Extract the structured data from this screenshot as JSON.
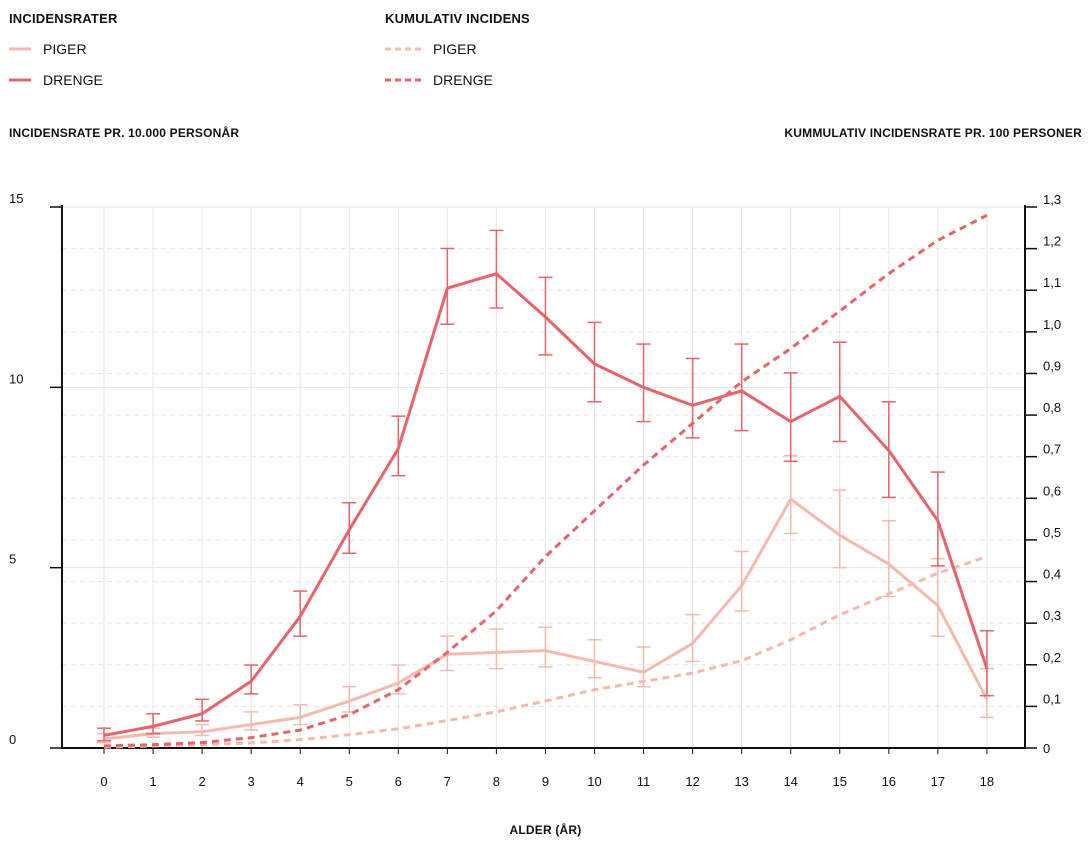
{
  "legend": {
    "rates_title": "INCIDENSRATER",
    "cumulative_title": "KUMULATIV INCIDENS",
    "girls_label": "PIGER",
    "boys_label": "DRENGE",
    "cum_girls_label": "PIGER",
    "cum_boys_label": "DRENGE"
  },
  "axes": {
    "left_title": "INCIDENSRATE PR. 10.000 PERSONÅR",
    "right_title": "KUMMULATIV INCIDENSRATE PR. 100 PERSONER",
    "x_title": "ALDER (ÅR)"
  },
  "colors": {
    "boys": "#e8636a",
    "girls": "#f5b9b0",
    "grid": "#e6e6e6",
    "axis": "#111111"
  },
  "chart_data": {
    "type": "line",
    "x": [
      0,
      1,
      2,
      3,
      4,
      5,
      6,
      7,
      8,
      9,
      10,
      11,
      12,
      13,
      14,
      15,
      16,
      17,
      18
    ],
    "xlabel": "ALDER (ÅR)",
    "ylabel": "INCIDENSRATE PR. 10.000 PERSONÅR",
    "y2label": "KUMMULATIV INCIDENSRATE PR. 100 PERSONER",
    "ylim": [
      0,
      15
    ],
    "y2lim": [
      0,
      1.3
    ],
    "yticks": [
      "0",
      "5",
      "10",
      "15"
    ],
    "y2ticks": [
      "0",
      "0,1",
      "0,2",
      "0,3",
      "0,4",
      "0,5",
      "0,6",
      "0,7",
      "0,8",
      "0,9",
      "1,0",
      "1,1",
      "1,2",
      "1,3"
    ],
    "grid": true,
    "series": [
      {
        "name": "DRENGE",
        "axis": "left",
        "style": "solid",
        "color": "#e8636a",
        "values": [
          0.35,
          0.6,
          0.95,
          1.85,
          3.65,
          6.05,
          8.3,
          12.75,
          13.15,
          11.95,
          10.65,
          10.0,
          9.5,
          9.9,
          9.05,
          9.75,
          8.25,
          6.3,
          2.2
        ],
        "lower": [
          0.2,
          0.4,
          0.75,
          1.5,
          3.1,
          5.4,
          7.55,
          11.75,
          12.2,
          10.9,
          9.6,
          9.05,
          8.6,
          8.8,
          7.95,
          8.5,
          6.95,
          5.05,
          1.45
        ],
        "upper": [
          0.55,
          0.95,
          1.35,
          2.3,
          4.35,
          6.8,
          9.2,
          13.85,
          14.35,
          13.05,
          11.8,
          11.2,
          10.8,
          11.2,
          10.4,
          11.25,
          9.6,
          7.65,
          3.25
        ]
      },
      {
        "name": "PIGER",
        "axis": "left",
        "style": "solid",
        "color": "#f5b9b0",
        "values": [
          0.25,
          0.4,
          0.45,
          0.65,
          0.85,
          1.3,
          1.8,
          2.6,
          2.65,
          2.7,
          2.4,
          2.1,
          2.9,
          4.5,
          6.9,
          5.9,
          5.1,
          3.95,
          1.35
        ],
        "lower": [
          0.15,
          0.3,
          0.35,
          0.5,
          0.65,
          1.0,
          1.5,
          2.15,
          2.2,
          2.25,
          1.95,
          1.7,
          2.4,
          3.8,
          5.95,
          5.0,
          4.2,
          3.1,
          0.85
        ],
        "upper": [
          0.4,
          0.55,
          0.65,
          1.0,
          1.2,
          1.7,
          2.3,
          3.1,
          3.3,
          3.35,
          3.0,
          2.8,
          3.7,
          5.45,
          8.1,
          7.15,
          6.3,
          5.25,
          2.2
        ]
      },
      {
        "name": "DRENGE",
        "axis": "right",
        "style": "dashed",
        "color": "#e8636a",
        "values": [
          0.005,
          0.008,
          0.013,
          0.025,
          0.043,
          0.08,
          0.14,
          0.23,
          0.33,
          0.46,
          0.57,
          0.68,
          0.78,
          0.88,
          0.96,
          1.05,
          1.14,
          1.22,
          1.28
        ]
      },
      {
        "name": "PIGER",
        "axis": "right",
        "style": "dashed",
        "color": "#f5b9b0",
        "values": [
          0.002,
          0.005,
          0.008,
          0.012,
          0.02,
          0.032,
          0.046,
          0.066,
          0.087,
          0.113,
          0.14,
          0.16,
          0.18,
          0.21,
          0.26,
          0.32,
          0.37,
          0.42,
          0.46
        ]
      }
    ]
  }
}
